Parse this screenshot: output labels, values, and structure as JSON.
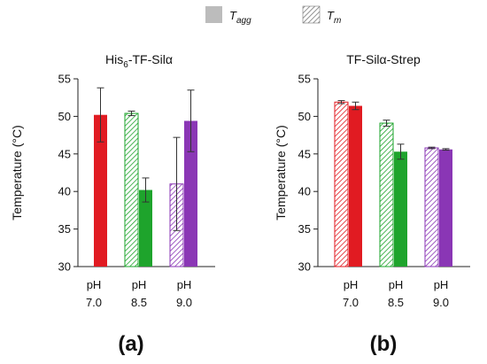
{
  "legend": [
    {
      "symbol": "T",
      "sub": "agg",
      "style": "solid"
    },
    {
      "symbol": "T",
      "sub": "m",
      "style": "hatched"
    }
  ],
  "colors": {
    "red": "#e11b22",
    "green": "#1ea42c",
    "purple": "#8a36b5"
  },
  "chart_data": [
    {
      "type": "bar",
      "title_main": "His",
      "title_sub": "6",
      "title_rest": "-TF-Silα",
      "ylabel": "Temperature (°C)",
      "ylim": [
        30,
        55
      ],
      "yticks": [
        30,
        35,
        40,
        45,
        50,
        55
      ],
      "categories": [
        [
          "pH",
          "7.0"
        ],
        [
          "pH",
          "8.5"
        ],
        [
          "pH",
          "9.0"
        ]
      ],
      "series": [
        {
          "name": "Tm",
          "style": "hatched",
          "values": [
            null,
            50.4,
            41.0
          ],
          "errors": [
            null,
            0.3,
            6.2
          ]
        },
        {
          "name": "Tagg",
          "style": "solid",
          "values": [
            50.2,
            40.2,
            49.4
          ],
          "errors": [
            3.6,
            1.6,
            4.1
          ]
        }
      ],
      "bar_colors": [
        "red",
        "green",
        "purple"
      ],
      "panel_label": "(a)"
    },
    {
      "type": "bar",
      "title_main": "TF-Silα-Strep",
      "title_sub": "",
      "title_rest": "",
      "ylabel": "Temperature (°C)",
      "ylim": [
        30,
        55
      ],
      "yticks": [
        30,
        35,
        40,
        45,
        50,
        55
      ],
      "categories": [
        [
          "pH",
          "7.0"
        ],
        [
          "pH",
          "8.5"
        ],
        [
          "pH",
          "9.0"
        ]
      ],
      "series": [
        {
          "name": "Tm",
          "style": "hatched",
          "values": [
            51.9,
            49.1,
            45.8
          ],
          "errors": [
            0.2,
            0.4,
            0.1
          ]
        },
        {
          "name": "Tagg",
          "style": "solid",
          "values": [
            51.4,
            45.3,
            45.6
          ],
          "errors": [
            0.5,
            1.0,
            0.1
          ]
        }
      ],
      "bar_colors": [
        "red",
        "green",
        "purple"
      ],
      "panel_label": "(b)"
    }
  ]
}
